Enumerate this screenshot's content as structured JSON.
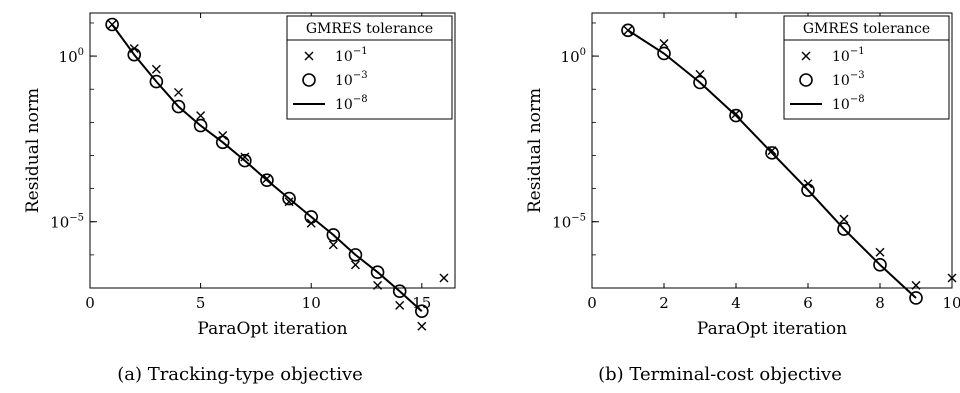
{
  "chart_data": [
    {
      "type": "line",
      "caption": "(a) Tracking-type objective",
      "xlabel": "ParaOpt iteration",
      "ylabel": "Residual norm",
      "x_ticks": [
        0,
        5,
        10,
        15
      ],
      "x_tick_labels": [
        "0",
        "5",
        "10",
        "15"
      ],
      "y_ticks": [
        1,
        1e-05
      ],
      "y_tick_labels": [
        {
          "base": "10",
          "exp": "0"
        },
        {
          "base": "10",
          "exp": "−5"
        }
      ],
      "xlim": [
        0,
        16.5
      ],
      "ylim": [
        1e-07,
        20
      ],
      "y_scale": "log",
      "grid": false,
      "legend": {
        "title": "GMRES tolerance",
        "placement": "top-right",
        "entries": [
          {
            "base": "10",
            "exp": "−1",
            "marker": "x"
          },
          {
            "base": "10",
            "exp": "−3",
            "marker": "circle"
          },
          {
            "base": "10",
            "exp": "−8",
            "marker": "line"
          }
        ]
      },
      "series": [
        {
          "marker": "x",
          "x": [
            1,
            2,
            3,
            4,
            5,
            6,
            7,
            8,
            9,
            10,
            11,
            12,
            13,
            14,
            15,
            16
          ],
          "y": [
            9,
            1.7,
            0.4,
            0.08,
            0.016,
            0.004,
            0.0009,
            0.0002,
            4e-05,
            9e-06,
            2e-06,
            5e-07,
            1.2e-07,
            3e-08,
            7e-09,
            2e-07
          ]
        },
        {
          "marker": "circle",
          "x": [
            1,
            2,
            3,
            4,
            5,
            6,
            7,
            8,
            9,
            10,
            11,
            12,
            13,
            14,
            15
          ],
          "y": [
            9,
            1.1,
            0.17,
            0.03,
            0.008,
            0.0025,
            0.0007,
            0.00018,
            5e-05,
            1.4e-05,
            4e-06,
            1e-06,
            3e-07,
            8e-08,
            2e-08
          ]
        },
        {
          "marker": "line",
          "x": [
            1,
            2,
            3,
            4,
            5,
            6,
            7,
            8,
            9,
            10,
            11,
            12,
            13,
            14,
            15
          ],
          "y": [
            9,
            1.1,
            0.17,
            0.03,
            0.008,
            0.0025,
            0.0007,
            0.00018,
            5e-05,
            1.4e-05,
            4e-06,
            1e-06,
            3e-07,
            8e-08,
            2e-08
          ]
        }
      ]
    },
    {
      "type": "line",
      "caption": "(b) Terminal-cost objective",
      "xlabel": "ParaOpt iteration",
      "ylabel": "Residual norm",
      "x_ticks": [
        0,
        2,
        4,
        6,
        8,
        10
      ],
      "x_tick_labels": [
        "0",
        "2",
        "4",
        "6",
        "8",
        "10"
      ],
      "y_ticks": [
        1,
        1e-05
      ],
      "y_tick_labels": [
        {
          "base": "10",
          "exp": "0"
        },
        {
          "base": "10",
          "exp": "−5"
        }
      ],
      "xlim": [
        0,
        10
      ],
      "ylim": [
        1e-07,
        20
      ],
      "y_scale": "log",
      "grid": false,
      "legend": {
        "title": "GMRES tolerance",
        "placement": "top-right",
        "entries": [
          {
            "base": "10",
            "exp": "−1",
            "marker": "x"
          },
          {
            "base": "10",
            "exp": "−3",
            "marker": "circle"
          },
          {
            "base": "10",
            "exp": "−8",
            "marker": "line"
          }
        ]
      },
      "series": [
        {
          "marker": "x",
          "x": [
            1,
            2,
            3,
            4,
            5,
            6,
            7,
            8,
            9,
            10
          ],
          "y": [
            6,
            2.4,
            0.28,
            0.018,
            0.0014,
            0.00014,
            1.2e-05,
            1.2e-06,
            1.2e-07,
            2e-07
          ]
        },
        {
          "marker": "circle",
          "x": [
            1,
            2,
            3,
            4,
            5,
            6,
            7,
            8,
            9
          ],
          "y": [
            6,
            1.2,
            0.16,
            0.016,
            0.0012,
            9e-05,
            6e-06,
            5e-07,
            5e-08
          ]
        },
        {
          "marker": "line",
          "x": [
            1,
            2,
            3,
            4,
            5,
            6,
            7,
            8,
            9
          ],
          "y": [
            6,
            1.2,
            0.16,
            0.016,
            0.0012,
            9e-05,
            6e-06,
            5e-07,
            5e-08
          ]
        }
      ]
    }
  ]
}
